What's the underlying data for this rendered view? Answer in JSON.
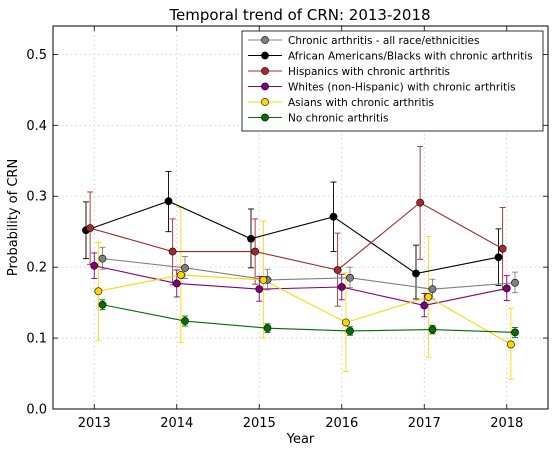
{
  "chart_data": {
    "type": "line",
    "title": "Temporal trend of CRN: 2013-2018",
    "xlabel": "Year",
    "ylabel": "Probability of CRN",
    "x": [
      2013,
      2014,
      2015,
      2016,
      2017,
      2018
    ],
    "x_tick_labels": [
      "2013",
      "2014",
      "2015",
      "2016",
      "2017",
      "2018"
    ],
    "xlim": [
      2012.5,
      2018.5
    ],
    "ylim": [
      0.0,
      0.54
    ],
    "y_ticks": [
      0.0,
      0.1,
      0.2,
      0.3,
      0.4,
      0.5
    ],
    "y_tick_labels": [
      "0.0",
      "0.1",
      "0.2",
      "0.3",
      "0.4",
      "0.5"
    ],
    "grid": true,
    "legend_position": "top-right",
    "series": [
      {
        "name": "Chronic arthritis - all race/ethnicities",
        "color": "#808080",
        "offset": 0.1,
        "values": [
          0.212,
          0.199,
          0.182,
          0.185,
          0.169,
          0.178
        ],
        "err_low": [
          0.197,
          0.184,
          0.168,
          0.171,
          0.155,
          0.164
        ],
        "err_high": [
          0.228,
          0.215,
          0.197,
          0.2,
          0.183,
          0.193
        ]
      },
      {
        "name": "African Americans/Blacks with chronic arthritis",
        "color": "#000000",
        "offset": -0.1,
        "values": [
          0.252,
          0.293,
          0.24,
          0.271,
          0.191,
          0.214
        ],
        "err_low": [
          0.212,
          0.25,
          0.199,
          0.222,
          0.155,
          0.174
        ],
        "err_high": [
          0.292,
          0.335,
          0.282,
          0.32,
          0.231,
          0.254
        ]
      },
      {
        "name": "Hispanics with chronic arthritis",
        "color": "#a52a2a",
        "offset": -0.05,
        "values": [
          0.255,
          0.222,
          0.222,
          0.196,
          0.291,
          0.226
        ],
        "err_low": [
          0.204,
          0.175,
          0.176,
          0.145,
          0.211,
          0.168
        ],
        "err_high": [
          0.306,
          0.268,
          0.268,
          0.248,
          0.37,
          0.284
        ]
      },
      {
        "name": "Whites (non-Hispanic) with chronic arthritis",
        "color": "#800080",
        "offset": 0.0,
        "values": [
          0.202,
          0.177,
          0.169,
          0.172,
          0.146,
          0.17
        ],
        "err_low": [
          0.184,
          0.158,
          0.152,
          0.154,
          0.13,
          0.153
        ],
        "err_high": [
          0.22,
          0.196,
          0.187,
          0.19,
          0.163,
          0.188
        ]
      },
      {
        "name": "Asians with chronic arthritis",
        "color": "#ffd700",
        "offset": 0.05,
        "values": [
          0.166,
          0.189,
          0.182,
          0.122,
          0.158,
          0.091
        ],
        "err_low": [
          0.097,
          0.094,
          0.1,
          0.053,
          0.073,
          0.042
        ],
        "err_high": [
          0.235,
          0.284,
          0.265,
          0.192,
          0.243,
          0.142
        ]
      },
      {
        "name": "No chronic arthritis",
        "color": "#007000",
        "offset": 0.1,
        "values": [
          0.147,
          0.124,
          0.114,
          0.11,
          0.112,
          0.108
        ],
        "err_low": [
          0.14,
          0.117,
          0.108,
          0.104,
          0.106,
          0.101
        ],
        "err_high": [
          0.154,
          0.131,
          0.12,
          0.116,
          0.118,
          0.115
        ]
      }
    ]
  }
}
